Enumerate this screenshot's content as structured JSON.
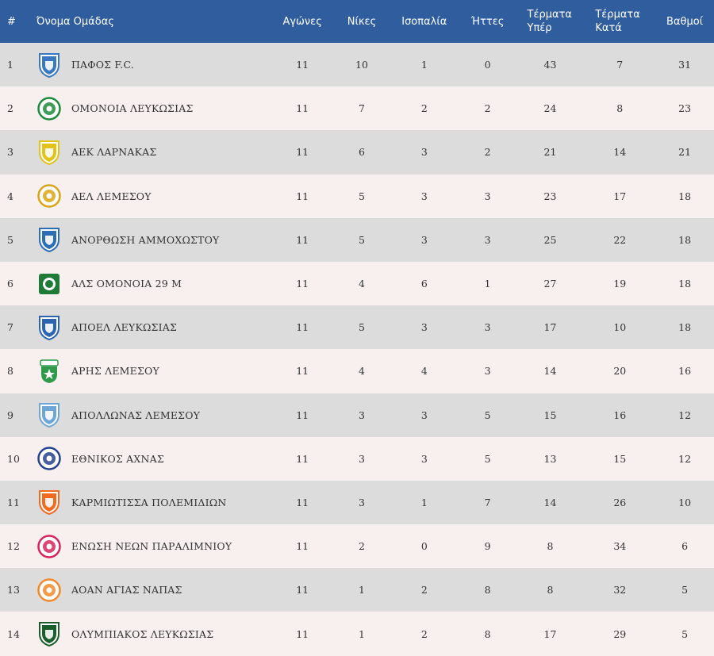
{
  "table": {
    "headers": {
      "pos": "#",
      "team": "Όνομα Ομάδας",
      "played": "Αγώνες",
      "wins": "Νίκες",
      "draws": "Ισοπαλία",
      "losses": "Ήττες",
      "gf_line1": "Τέρματα",
      "gf_line2": "Υπέρ",
      "ga_line1": "Τέρματα",
      "ga_line2": "Κατά",
      "points": "Βαθμοί"
    },
    "rows": [
      {
        "pos": "1",
        "team": "ΠΑΦΟΣ F.C.",
        "played": "11",
        "wins": "10",
        "draws": "1",
        "losses": "0",
        "gf": "43",
        "ga": "7",
        "pts": "31",
        "crest": "pafos-crest-icon",
        "color": "#3a78c2"
      },
      {
        "pos": "2",
        "team": "ΟΜΟΝΟΙΑ ΛΕΥΚΩΣΙΑΣ",
        "played": "11",
        "wins": "7",
        "draws": "2",
        "losses": "2",
        "gf": "24",
        "ga": "8",
        "pts": "23",
        "crest": "omonoia-crest-icon",
        "color": "#1e8a3c"
      },
      {
        "pos": "3",
        "team": "ΑΕΚ ΛΑΡΝΑΚΑΣ",
        "played": "11",
        "wins": "6",
        "draws": "3",
        "losses": "2",
        "gf": "21",
        "ga": "14",
        "pts": "21",
        "crest": "aek-crest-icon",
        "color": "#e3c21a"
      },
      {
        "pos": "4",
        "team": "ΑΕΛ ΛΕΜΕΣΟΥ",
        "played": "11",
        "wins": "5",
        "draws": "3",
        "losses": "3",
        "gf": "23",
        "ga": "17",
        "pts": "18",
        "crest": "ael-crest-icon",
        "color": "#d9a515"
      },
      {
        "pos": "5",
        "team": "ΑΝΟΡΘΩΣΗ ΑΜΜΟΧΩΣΤΟΥ",
        "played": "11",
        "wins": "5",
        "draws": "3",
        "losses": "3",
        "gf": "25",
        "ga": "22",
        "pts": "18",
        "crest": "anorthosis-crest-icon",
        "color": "#2d6db5"
      },
      {
        "pos": "6",
        "team": "ΑΛΣ ΟΜΟΝΟΙΑ 29 Μ",
        "played": "11",
        "wins": "4",
        "draws": "6",
        "losses": "1",
        "gf": "27",
        "ga": "19",
        "pts": "18",
        "crest": "als-omonoia-crest-icon",
        "color": "#1f7a38"
      },
      {
        "pos": "7",
        "team": "ΑΠΟΕΛ ΛΕΥΚΩΣΙΑΣ",
        "played": "11",
        "wins": "5",
        "draws": "3",
        "losses": "3",
        "gf": "17",
        "ga": "10",
        "pts": "18",
        "crest": "apoel-crest-icon",
        "color": "#2b64b0"
      },
      {
        "pos": "8",
        "team": "ΑΡΗΣ ΛΕΜΕΣΟΥ",
        "played": "11",
        "wins": "4",
        "draws": "4",
        "losses": "3",
        "gf": "14",
        "ga": "20",
        "pts": "16",
        "crest": "aris-crest-icon",
        "color": "#2e9a4a"
      },
      {
        "pos": "9",
        "team": "ΑΠΟΛΛΩΝΑΣ ΛΕΜΕΣΟΥ",
        "played": "11",
        "wins": "3",
        "draws": "3",
        "losses": "5",
        "gf": "15",
        "ga": "16",
        "pts": "12",
        "crest": "apollon-crest-icon",
        "color": "#6fa6d8"
      },
      {
        "pos": "10",
        "team": "ΕΘΝΙΚΟΣ ΑΧΝΑΣ",
        "played": "11",
        "wins": "3",
        "draws": "3",
        "losses": "5",
        "gf": "13",
        "ga": "15",
        "pts": "12",
        "crest": "ethnikos-crest-icon",
        "color": "#26418f"
      },
      {
        "pos": "11",
        "team": "ΚΑΡΜΙΩΤΙΣΣΑ ΠΟΛΕΜΙΔΙΩΝ",
        "played": "11",
        "wins": "3",
        "draws": "1",
        "losses": "7",
        "gf": "14",
        "ga": "26",
        "pts": "10",
        "crest": "karmiotissa-crest-icon",
        "color": "#f26a21"
      },
      {
        "pos": "12",
        "team": "ΕΝΩΣΗ ΝΕΩΝ ΠΑΡΑΛΙΜΝΙΟΥ",
        "played": "11",
        "wins": "2",
        "draws": "0",
        "losses": "9",
        "gf": "8",
        "ga": "34",
        "pts": "6",
        "crest": "enp-crest-icon",
        "color": "#d8245a"
      },
      {
        "pos": "13",
        "team": "ΑΟΑΝ ΑΓΙΑΣ ΝΑΠΑΣ",
        "played": "11",
        "wins": "1",
        "draws": "2",
        "losses": "8",
        "gf": "8",
        "ga": "32",
        "pts": "5",
        "crest": "aoan-crest-icon",
        "color": "#f08a2a"
      },
      {
        "pos": "14",
        "team": "ΟΛΥΜΠΙΑΚΟΣ ΛΕΥΚΩΣΙΑΣ",
        "played": "11",
        "wins": "1",
        "draws": "2",
        "losses": "8",
        "gf": "17",
        "ga": "29",
        "pts": "5",
        "crest": "olympiakos-crest-icon",
        "color": "#1b5e2a"
      }
    ]
  },
  "colors": {
    "header_bg": "#2f5d9e",
    "row_odd": "#dcdcdc",
    "row_even": "#f8efef"
  }
}
